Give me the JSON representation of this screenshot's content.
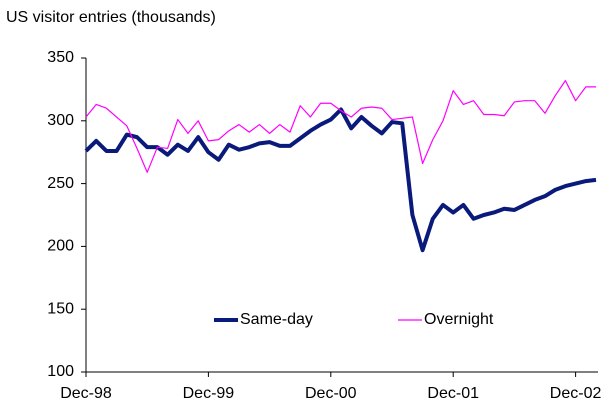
{
  "chart_data": {
    "type": "line",
    "title": "US visitor entries (thousands)",
    "categories": [
      "Dec-98",
      null,
      null,
      null,
      null,
      null,
      null,
      null,
      null,
      null,
      null,
      null,
      "Dec-99",
      null,
      null,
      null,
      null,
      null,
      null,
      null,
      null,
      null,
      null,
      null,
      "Dec-00",
      null,
      null,
      null,
      null,
      null,
      null,
      null,
      null,
      null,
      null,
      null,
      "Dec-01",
      null,
      null,
      null,
      null,
      null,
      null,
      null,
      null,
      null,
      null,
      null,
      "Dec-02",
      null,
      null
    ],
    "series": [
      {
        "name": "Same-day",
        "color": "#0a1a7a",
        "values": [
          276,
          284,
          276,
          276,
          289,
          287,
          279,
          279,
          273,
          281,
          276,
          287,
          275,
          269,
          281,
          277,
          279,
          282,
          283,
          280,
          280,
          286,
          292,
          297,
          301,
          309,
          294,
          303,
          296,
          290,
          299,
          298,
          225,
          197,
          222,
          233,
          227,
          233,
          222,
          225,
          227,
          230,
          229,
          233,
          237,
          240,
          245,
          248,
          250,
          252,
          253
        ]
      },
      {
        "name": "Overnight",
        "color": "#ff00ff",
        "values": [
          303,
          313,
          310,
          303,
          296,
          278,
          259,
          279,
          278,
          301,
          290,
          300,
          284,
          285,
          292,
          297,
          291,
          297,
          290,
          297,
          291,
          312,
          303,
          314,
          314,
          308,
          303,
          310,
          311,
          310,
          301,
          302,
          303,
          266,
          285,
          300,
          324,
          313,
          316,
          305,
          305,
          304,
          315,
          316,
          316,
          306,
          320,
          332,
          316,
          327,
          327
        ]
      }
    ],
    "ylim": [
      100,
      350
    ],
    "yticks": [
      100,
      150,
      200,
      250,
      300,
      350
    ],
    "grid": false
  }
}
